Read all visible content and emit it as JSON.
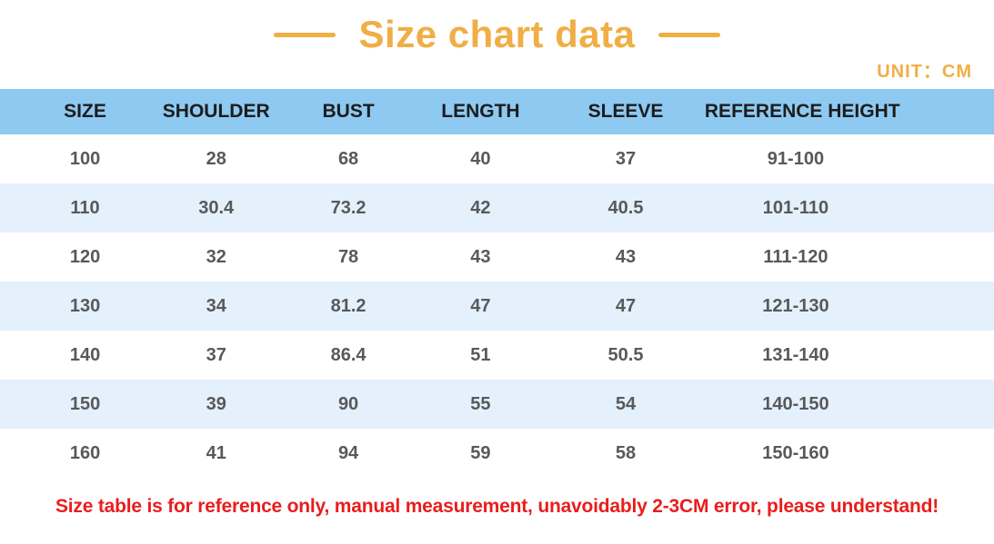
{
  "title": {
    "text": "Size chart data",
    "unit_label": "UNIT：CM"
  },
  "table": {
    "headers": [
      "SIZE",
      "SHOULDER",
      "BUST",
      "LENGTH",
      "SLEEVE",
      "REFERENCE HEIGHT"
    ],
    "rows": [
      [
        "100",
        "28",
        "68",
        "40",
        "37",
        "91-100"
      ],
      [
        "110",
        "30.4",
        "73.2",
        "42",
        "40.5",
        "101-110"
      ],
      [
        "120",
        "32",
        "78",
        "43",
        "43",
        "111-120"
      ],
      [
        "130",
        "34",
        "81.2",
        "47",
        "47",
        "121-130"
      ],
      [
        "140",
        "37",
        "86.4",
        "51",
        "50.5",
        "131-140"
      ],
      [
        "150",
        "39",
        "90",
        "55",
        "54",
        "140-150"
      ],
      [
        "160",
        "41",
        "94",
        "59",
        "58",
        "150-160"
      ]
    ]
  },
  "footnote": "Size table is for reference only, manual measurement, unavoidably 2-3CM error, please understand!",
  "colors": {
    "accent_orange": "#F0AE45",
    "header_blue": "#8EC9F1",
    "row_alt_blue": "#E4F1FC",
    "header_text": "#1C1C1C",
    "cell_text": "#58595B",
    "footnote_red": "#E91D1D"
  }
}
